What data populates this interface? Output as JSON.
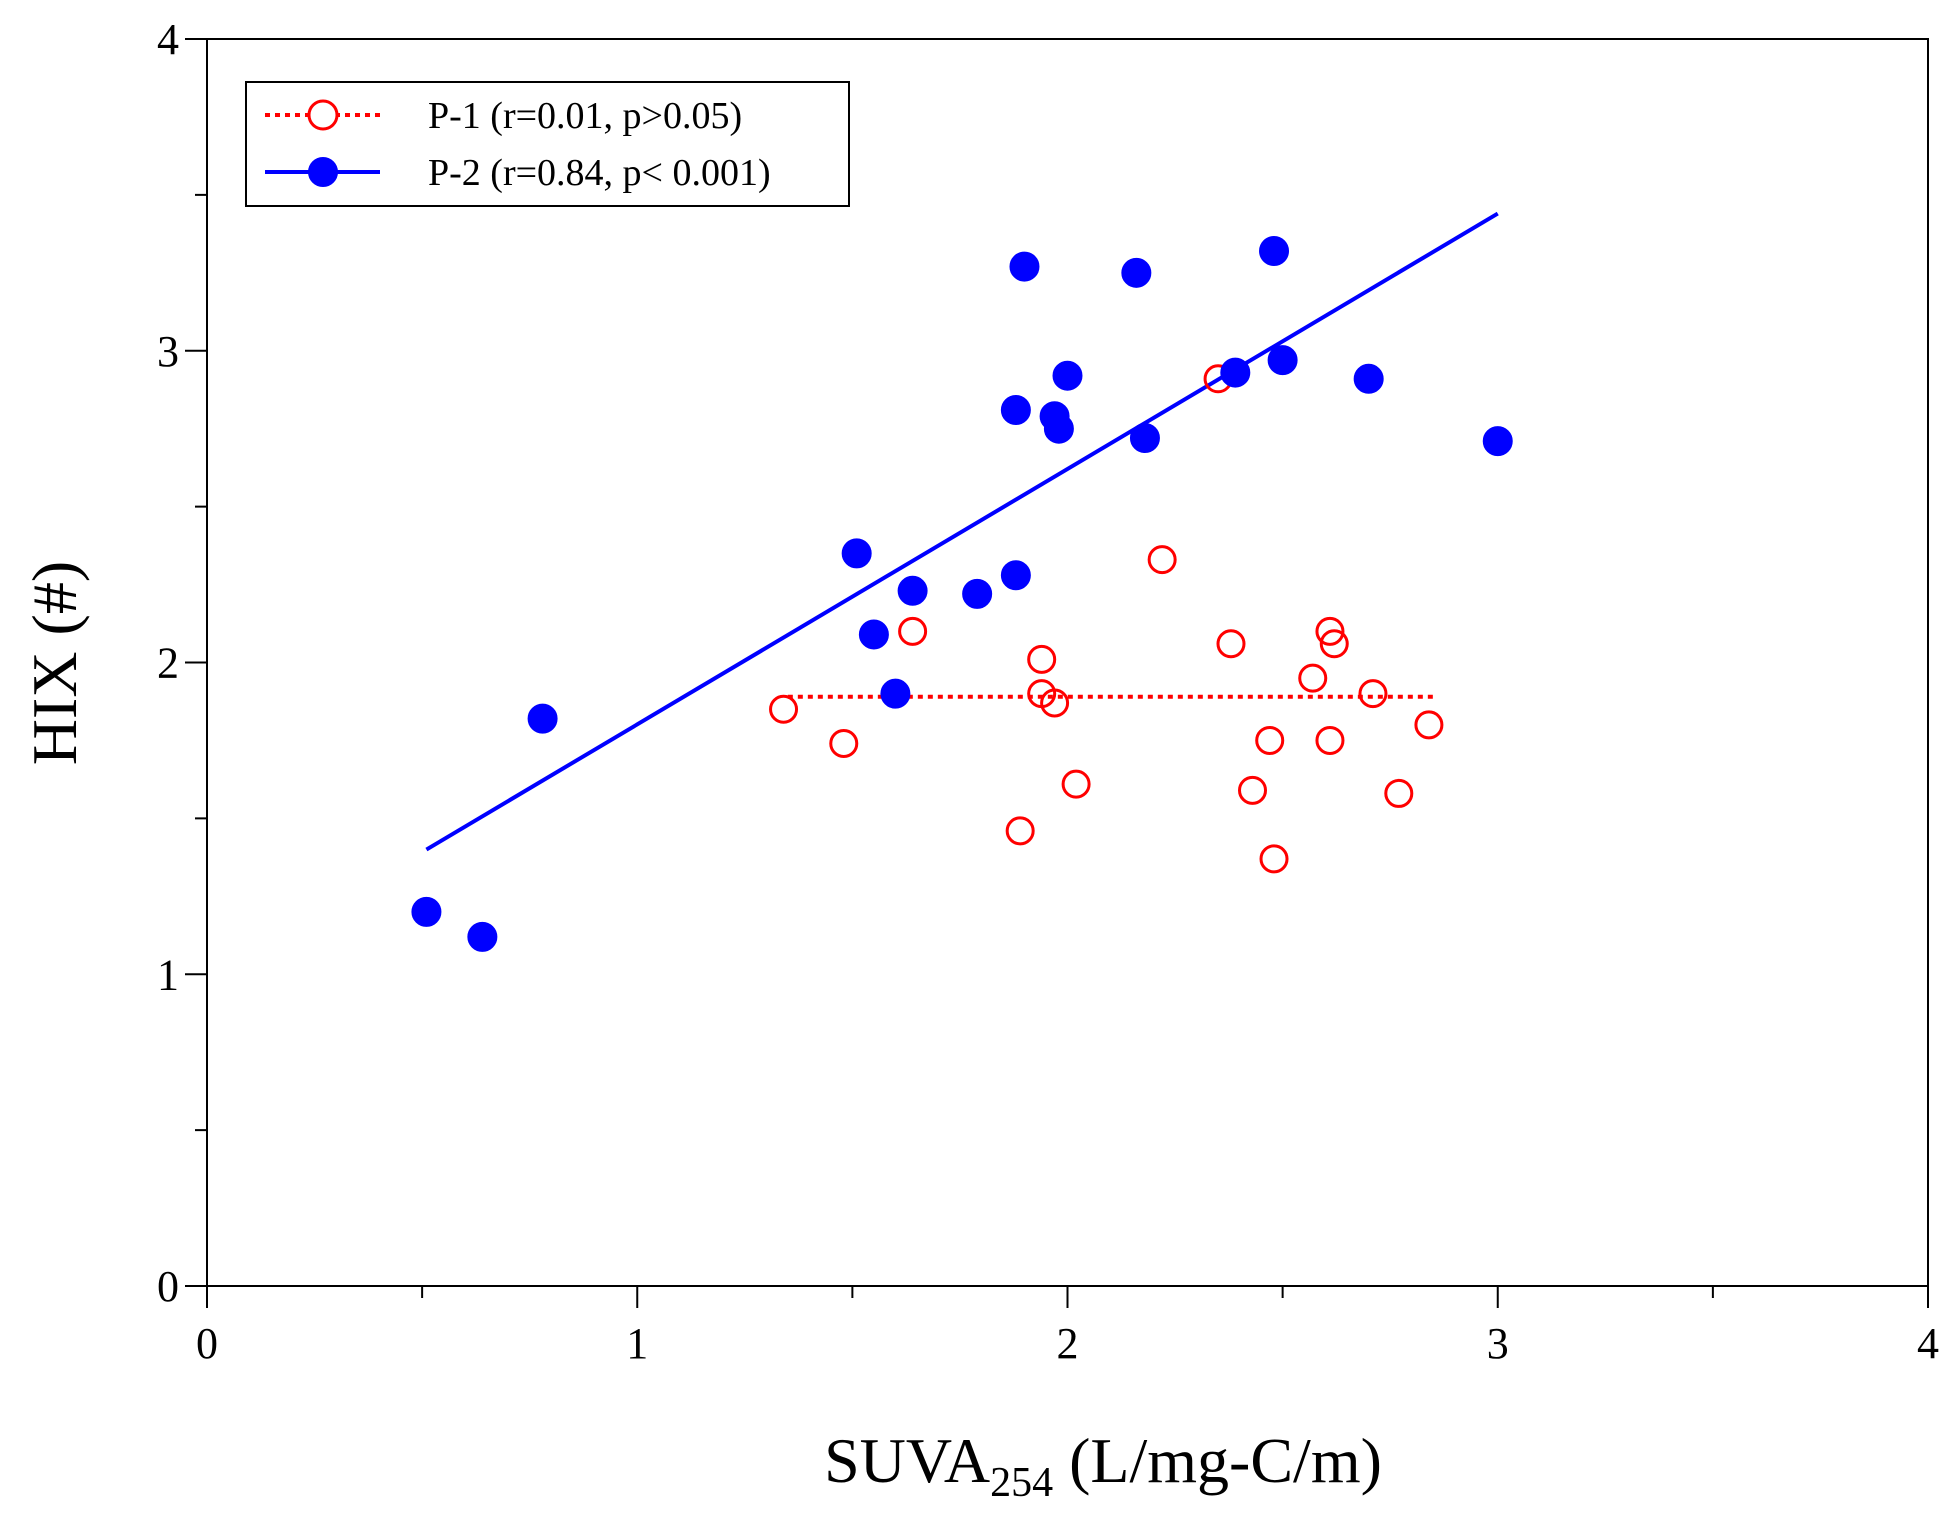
{
  "chart_data": {
    "type": "scatter",
    "xlabel_main": "SUVA",
    "xlabel_sub": "254",
    "xlabel_unit": " (L/mg-C/m)",
    "ylabel": "HIX (#)",
    "xlim": [
      0,
      4
    ],
    "ylim": [
      0,
      4
    ],
    "x_ticks": [
      "0",
      "1",
      "2",
      "3",
      "4"
    ],
    "y_ticks": [
      "0",
      "1",
      "2",
      "3",
      "4"
    ],
    "legend_position": "top-left",
    "series": [
      {
        "name": "P-1 (r=0.01, p>0.05)",
        "color": "#ff0000",
        "marker": "open-circle",
        "line_style": "dotted",
        "fit_line": [
          [
            1.35,
            1.89
          ],
          [
            2.85,
            1.89
          ]
        ],
        "x": [
          1.34,
          1.48,
          1.64,
          1.94,
          1.94,
          1.97,
          1.89,
          2.02,
          2.22,
          2.35,
          2.38,
          2.43,
          2.47,
          2.48,
          2.57,
          2.61,
          2.62,
          2.61,
          2.71,
          2.77,
          2.84
        ],
        "y": [
          1.85,
          1.74,
          2.1,
          2.01,
          1.9,
          1.87,
          1.46,
          1.61,
          2.33,
          2.91,
          2.06,
          1.59,
          1.75,
          1.37,
          1.95,
          2.1,
          2.06,
          1.75,
          1.9,
          1.58,
          1.8
        ]
      },
      {
        "name": "P-2 (r=0.84, p< 0.001)",
        "color": "#0000ff",
        "marker": "filled-circle",
        "line_style": "solid",
        "fit_line": [
          [
            0.51,
            1.4
          ],
          [
            3.0,
            3.44
          ]
        ],
        "x": [
          0.51,
          0.64,
          0.78,
          1.51,
          1.55,
          1.6,
          1.64,
          1.79,
          1.88,
          1.88,
          1.9,
          1.97,
          1.98,
          2.0,
          2.16,
          2.18,
          2.39,
          2.48,
          2.5,
          2.7,
          3.0
        ],
        "y": [
          1.2,
          1.12,
          1.82,
          2.35,
          2.09,
          1.9,
          2.23,
          2.22,
          2.28,
          2.81,
          3.27,
          2.79,
          2.75,
          2.92,
          3.25,
          2.72,
          2.93,
          3.32,
          2.97,
          2.91,
          2.71
        ]
      }
    ]
  }
}
